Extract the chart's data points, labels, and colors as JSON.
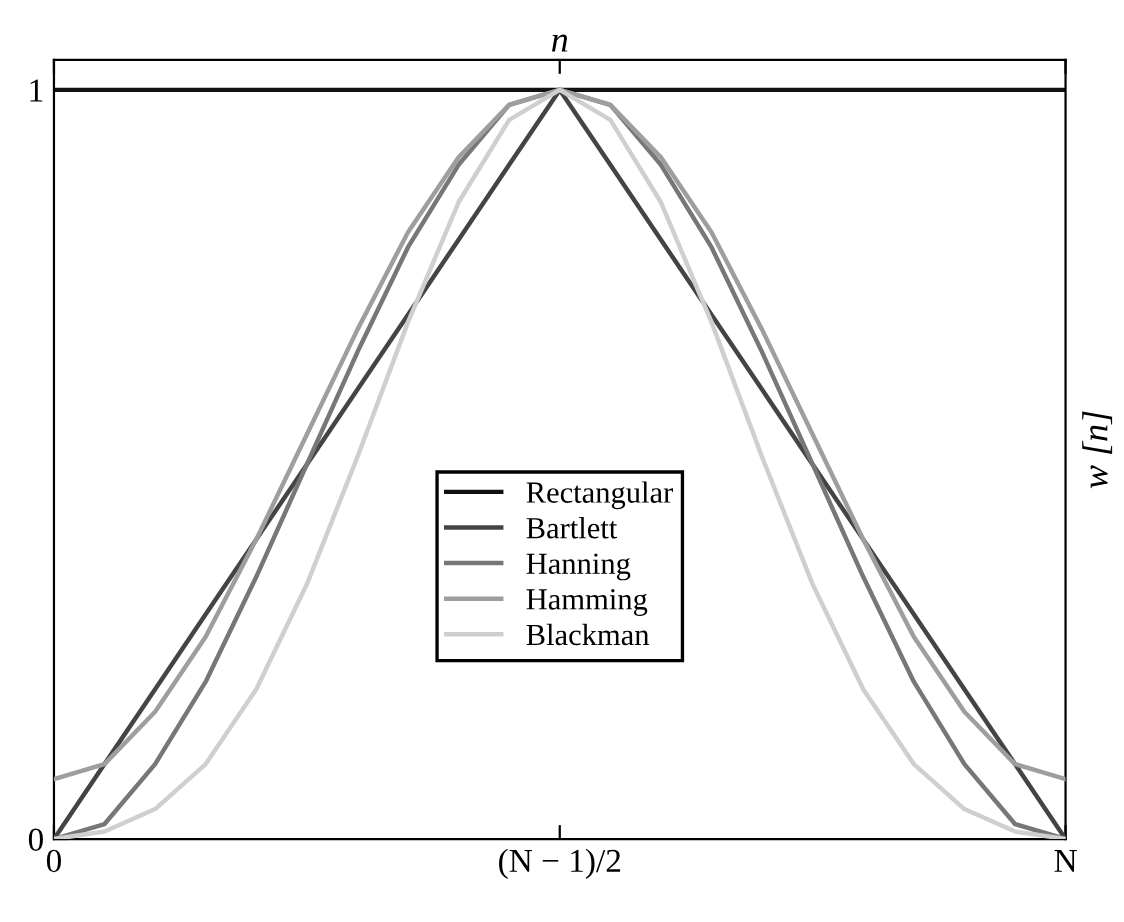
{
  "chart_data": {
    "type": "line",
    "xlabel": "n",
    "ylabel": "w [n]",
    "categories": [
      "0",
      null,
      null,
      null,
      null,
      null,
      null,
      null,
      null,
      null,
      "(N − 1)/2",
      null,
      null,
      null,
      null,
      null,
      null,
      null,
      null,
      null,
      "N"
    ],
    "ylim": [
      0,
      1.04
    ],
    "yticks": [
      0,
      1
    ],
    "grid": false,
    "legend": "center",
    "marker": "none",
    "line_style": "solid",
    "series": [
      {
        "name": "Rectangular",
        "color": "#111111",
        "values": [
          1,
          1,
          1,
          1,
          1,
          1,
          1,
          1,
          1,
          1,
          1,
          1,
          1,
          1,
          1,
          1,
          1,
          1,
          1,
          1,
          1
        ]
      },
      {
        "name": "Bartlett",
        "color": "#444444",
        "values": [
          0,
          0.1,
          0.2,
          0.3,
          0.4,
          0.5,
          0.6,
          0.7,
          0.8,
          0.9,
          1,
          0.9,
          0.8,
          0.7,
          0.6,
          0.5,
          0.4,
          0.3,
          0.2,
          0.1,
          0
        ]
      },
      {
        "name": "Hanning",
        "color": "#777777",
        "values": [
          0,
          0.02,
          0.1,
          0.21,
          0.35,
          0.5,
          0.65,
          0.79,
          0.9,
          0.98,
          1,
          0.98,
          0.9,
          0.79,
          0.65,
          0.5,
          0.35,
          0.21,
          0.1,
          0.02,
          0
        ]
      },
      {
        "name": "Hamming",
        "color": "#9e9e9e",
        "values": [
          0.08,
          0.1,
          0.17,
          0.27,
          0.4,
          0.54,
          0.68,
          0.81,
          0.91,
          0.98,
          1,
          0.98,
          0.91,
          0.81,
          0.68,
          0.54,
          0.4,
          0.27,
          0.17,
          0.1,
          0.08
        ]
      },
      {
        "name": "Blackman",
        "color": "#cfcfcf",
        "values": [
          0,
          0.01,
          0.04,
          0.1,
          0.2,
          0.34,
          0.51,
          0.69,
          0.85,
          0.96,
          1,
          0.96,
          0.85,
          0.69,
          0.51,
          0.34,
          0.2,
          0.1,
          0.04,
          0.01,
          0
        ]
      }
    ]
  }
}
